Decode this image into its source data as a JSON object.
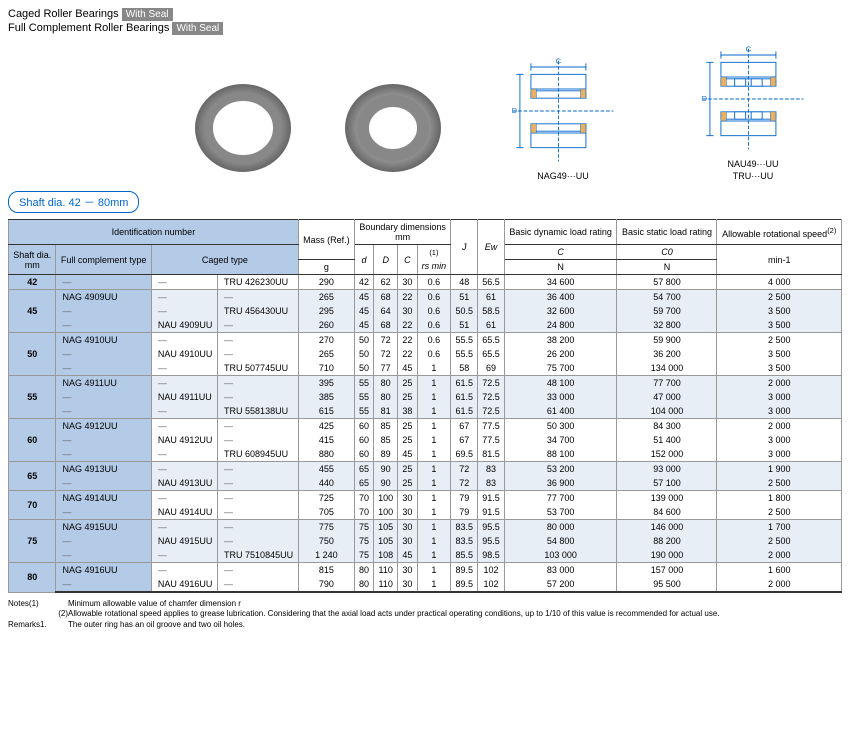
{
  "header": {
    "line1": "Caged Roller Bearings",
    "line2": "Full Complement Roller Bearings",
    "seal_label": "With Seal"
  },
  "diagrams": {
    "cap1": "NAG49···UU",
    "cap2a": "NAU49···UU",
    "cap2b": "TRU···UU",
    "dim_c": "C",
    "dim_d": "d",
    "dim_D": "D",
    "dim_ew": "Ew",
    "dim_j": "J",
    "dim_rs": "rs"
  },
  "shaft_badge": "Shaft dia. 42 － 80mm",
  "table": {
    "headers": {
      "ident": "Identification number",
      "shaft": "Shaft dia.",
      "shaft_unit": "mm",
      "fullcomp": "Full complement type",
      "caged": "Caged type",
      "mass": "Mass (Ref.)",
      "mass_unit": "g",
      "boundary": "Boundary dimensions",
      "boundary_unit": "mm",
      "d": "d",
      "D": "D",
      "C": "C",
      "rs": "rs min",
      "rs_note": "(1)",
      "J": "J",
      "Ew": "Ew",
      "dyn": "Basic dynamic load rating",
      "dyn_sym": "C",
      "stat": "Basic static load rating",
      "stat_sym": "C0",
      "n_unit": "N",
      "speed": "Allowable rotational speed",
      "speed_note": "(2)",
      "speed_unit": "min-1"
    },
    "groups": [
      {
        "shaft": "42",
        "alt": false,
        "rows": [
          {
            "nag": "—",
            "nau": "—",
            "tru": "TRU  426230UU",
            "mass": "290",
            "d": "42",
            "D": "62",
            "C": "30",
            "rs": "0.6",
            "J": "48",
            "Ew": "56.5",
            "dyn": "34 600",
            "stat": "57 800",
            "spd": "4 000"
          }
        ]
      },
      {
        "shaft": "45",
        "alt": true,
        "rows": [
          {
            "nag": "NAG 4909UU",
            "nau": "—",
            "tru": "—",
            "mass": "265",
            "d": "45",
            "D": "68",
            "C": "22",
            "rs": "0.6",
            "J": "51",
            "Ew": "61",
            "dyn": "36 400",
            "stat": "54 700",
            "spd": "2 500"
          },
          {
            "nag": "—",
            "nau": "—",
            "tru": "TRU  456430UU",
            "mass": "295",
            "d": "45",
            "D": "64",
            "C": "30",
            "rs": "0.6",
            "J": "50.5",
            "Ew": "58.5",
            "dyn": "32 600",
            "stat": "59 700",
            "spd": "3 500"
          },
          {
            "nag": "—",
            "nau": "NAU 4909UU",
            "tru": "—",
            "mass": "260",
            "d": "45",
            "D": "68",
            "C": "22",
            "rs": "0.6",
            "J": "51",
            "Ew": "61",
            "dyn": "24 800",
            "stat": "32 800",
            "spd": "3 500"
          }
        ]
      },
      {
        "shaft": "50",
        "alt": false,
        "rows": [
          {
            "nag": "NAG 4910UU",
            "nau": "—",
            "tru": "—",
            "mass": "270",
            "d": "50",
            "D": "72",
            "C": "22",
            "rs": "0.6",
            "J": "55.5",
            "Ew": "65.5",
            "dyn": "38 200",
            "stat": "59 900",
            "spd": "2 500"
          },
          {
            "nag": "—",
            "nau": "NAU 4910UU",
            "tru": "—",
            "mass": "265",
            "d": "50",
            "D": "72",
            "C": "22",
            "rs": "0.6",
            "J": "55.5",
            "Ew": "65.5",
            "dyn": "26 200",
            "stat": "36 200",
            "spd": "3 500"
          },
          {
            "nag": "—",
            "nau": "—",
            "tru": "TRU  507745UU",
            "mass": "710",
            "d": "50",
            "D": "77",
            "C": "45",
            "rs": "1",
            "J": "58",
            "Ew": "69",
            "dyn": "75 700",
            "stat": "134 000",
            "spd": "3 500"
          }
        ]
      },
      {
        "shaft": "55",
        "alt": true,
        "rows": [
          {
            "nag": "NAG 4911UU",
            "nau": "—",
            "tru": "—",
            "mass": "395",
            "d": "55",
            "D": "80",
            "C": "25",
            "rs": "1",
            "J": "61.5",
            "Ew": "72.5",
            "dyn": "48 100",
            "stat": "77 700",
            "spd": "2 000"
          },
          {
            "nag": "—",
            "nau": "NAU 4911UU",
            "tru": "—",
            "mass": "385",
            "d": "55",
            "D": "80",
            "C": "25",
            "rs": "1",
            "J": "61.5",
            "Ew": "72.5",
            "dyn": "33 000",
            "stat": "47 000",
            "spd": "3 000"
          },
          {
            "nag": "—",
            "nau": "—",
            "tru": "TRU  558138UU",
            "mass": "615",
            "d": "55",
            "D": "81",
            "C": "38",
            "rs": "1",
            "J": "61.5",
            "Ew": "72.5",
            "dyn": "61 400",
            "stat": "104 000",
            "spd": "3 000"
          }
        ]
      },
      {
        "shaft": "60",
        "alt": false,
        "rows": [
          {
            "nag": "NAG 4912UU",
            "nau": "—",
            "tru": "—",
            "mass": "425",
            "d": "60",
            "D": "85",
            "C": "25",
            "rs": "1",
            "J": "67",
            "Ew": "77.5",
            "dyn": "50 300",
            "stat": "84 300",
            "spd": "2 000"
          },
          {
            "nag": "—",
            "nau": "NAU 4912UU",
            "tru": "—",
            "mass": "415",
            "d": "60",
            "D": "85",
            "C": "25",
            "rs": "1",
            "J": "67",
            "Ew": "77.5",
            "dyn": "34 700",
            "stat": "51 400",
            "spd": "3 000"
          },
          {
            "nag": "—",
            "nau": "—",
            "tru": "TRU  608945UU",
            "mass": "880",
            "d": "60",
            "D": "89",
            "C": "45",
            "rs": "1",
            "J": "69.5",
            "Ew": "81.5",
            "dyn": "88 100",
            "stat": "152 000",
            "spd": "3 000"
          }
        ]
      },
      {
        "shaft": "65",
        "alt": true,
        "rows": [
          {
            "nag": "NAG 4913UU",
            "nau": "—",
            "tru": "—",
            "mass": "455",
            "d": "65",
            "D": "90",
            "C": "25",
            "rs": "1",
            "J": "72",
            "Ew": "83",
            "dyn": "53 200",
            "stat": "93 000",
            "spd": "1 900"
          },
          {
            "nag": "—",
            "nau": "NAU 4913UU",
            "tru": "—",
            "mass": "440",
            "d": "65",
            "D": "90",
            "C": "25",
            "rs": "1",
            "J": "72",
            "Ew": "83",
            "dyn": "36 900",
            "stat": "57 100",
            "spd": "2 500"
          }
        ]
      },
      {
        "shaft": "70",
        "alt": false,
        "rows": [
          {
            "nag": "NAG 4914UU",
            "nau": "—",
            "tru": "—",
            "mass": "725",
            "d": "70",
            "D": "100",
            "C": "30",
            "rs": "1",
            "J": "79",
            "Ew": "91.5",
            "dyn": "77 700",
            "stat": "139 000",
            "spd": "1 800"
          },
          {
            "nag": "—",
            "nau": "NAU 4914UU",
            "tru": "—",
            "mass": "705",
            "d": "70",
            "D": "100",
            "C": "30",
            "rs": "1",
            "J": "79",
            "Ew": "91.5",
            "dyn": "53 700",
            "stat": "84 600",
            "spd": "2 500"
          }
        ]
      },
      {
        "shaft": "75",
        "alt": true,
        "rows": [
          {
            "nag": "NAG 4915UU",
            "nau": "—",
            "tru": "—",
            "mass": "775",
            "d": "75",
            "D": "105",
            "C": "30",
            "rs": "1",
            "J": "83.5",
            "Ew": "95.5",
            "dyn": "80 000",
            "stat": "146 000",
            "spd": "1 700"
          },
          {
            "nag": "—",
            "nau": "NAU 4915UU",
            "tru": "—",
            "mass": "750",
            "d": "75",
            "D": "105",
            "C": "30",
            "rs": "1",
            "J": "83.5",
            "Ew": "95.5",
            "dyn": "54 800",
            "stat": "88 200",
            "spd": "2 500"
          },
          {
            "nag": "—",
            "nau": "—",
            "tru": "TRU 7510845UU",
            "mass": "1 240",
            "d": "75",
            "D": "108",
            "C": "45",
            "rs": "1",
            "J": "85.5",
            "Ew": "98.5",
            "dyn": "103 000",
            "stat": "190 000",
            "spd": "2 000"
          }
        ]
      },
      {
        "shaft": "80",
        "alt": false,
        "rows": [
          {
            "nag": "NAG 4916UU",
            "nau": "—",
            "tru": "—",
            "mass": "815",
            "d": "80",
            "D": "110",
            "C": "30",
            "rs": "1",
            "J": "89.5",
            "Ew": "102",
            "dyn": "83 000",
            "stat": "157 000",
            "spd": "1 600"
          },
          {
            "nag": "—",
            "nau": "NAU 4916UU",
            "tru": "—",
            "mass": "790",
            "d": "80",
            "D": "110",
            "C": "30",
            "rs": "1",
            "J": "89.5",
            "Ew": "102",
            "dyn": "57 200",
            "stat": "95 500",
            "spd": "2 000"
          }
        ]
      }
    ]
  },
  "notes": {
    "label1": "Notes(1)",
    "text1": "Minimum allowable value of chamfer dimension r",
    "label2": "(2)",
    "text2": "Allowable rotational speed applies to grease lubrication. Considering that the axial load acts under practical operating conditions, up to 1/10 of this value is recommended for actual use.",
    "remarks_label": "Remarks1.",
    "remarks1": "The outer ring has an oil groove and two oil holes."
  }
}
